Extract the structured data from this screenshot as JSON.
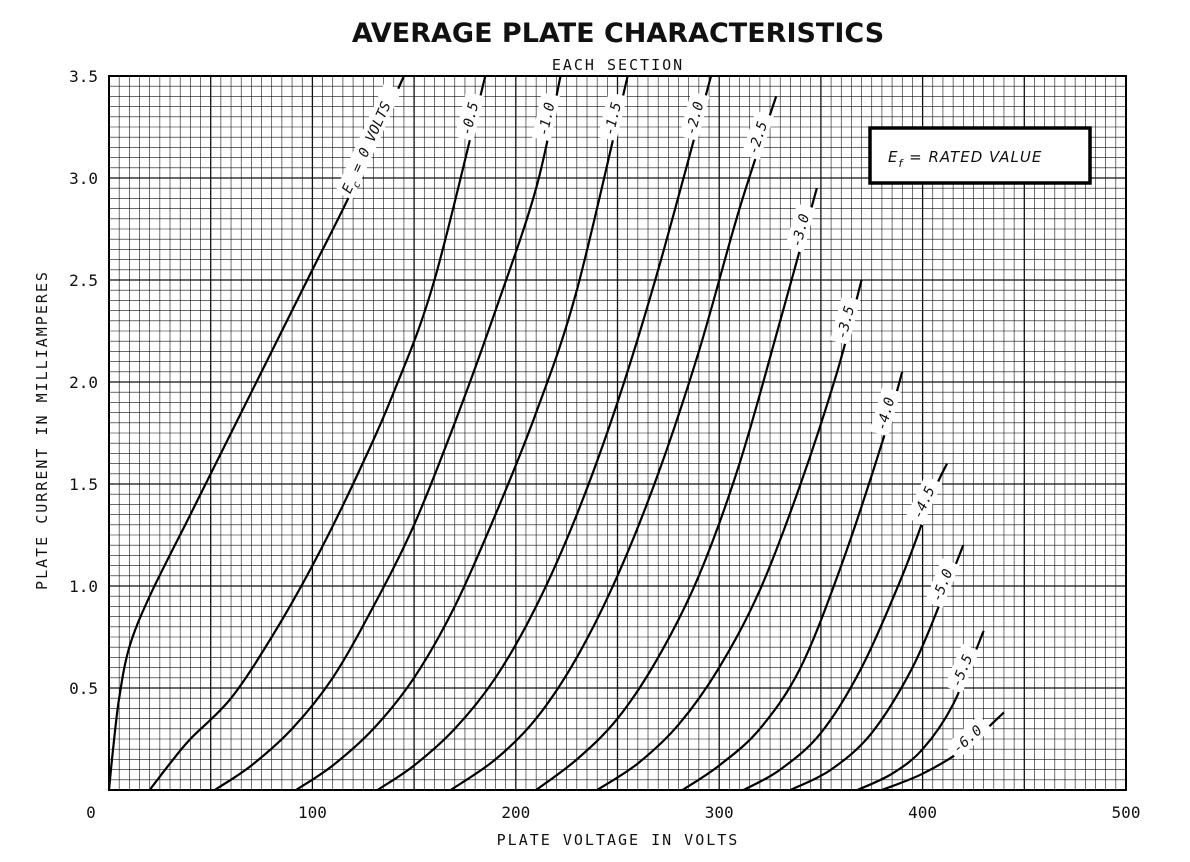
{
  "chart_data": {
    "type": "line",
    "title": "AVERAGE PLATE CHARACTERISTICS",
    "subtitle": "EACH SECTION",
    "xlabel": "PLATE VOLTAGE IN VOLTS",
    "ylabel": "PLATE CURRENT IN MILLIAMPERES",
    "xlim": [
      0,
      500
    ],
    "ylim": [
      0,
      3.5
    ],
    "grid": true,
    "x_ticks": [
      "0",
      "100",
      "200",
      "300",
      "400",
      "500"
    ],
    "y_ticks": [
      "0.5",
      "1.0",
      "1.5",
      "2.0",
      "2.5",
      "3.0",
      "3.5"
    ],
    "annotation": {
      "prefix": "E",
      "sub": "f",
      "text": " = RATED VALUE"
    },
    "series": [
      {
        "name": "E_c = 0 VOLTS",
        "label_prefix": "E",
        "label_sub": "c",
        "label_text": " = 0 VOLTS",
        "points": [
          [
            0,
            0
          ],
          [
            2,
            0.2
          ],
          [
            5,
            0.45
          ],
          [
            10,
            0.7
          ],
          [
            20,
            0.95
          ],
          [
            40,
            1.35
          ],
          [
            60,
            1.75
          ],
          [
            80,
            2.15
          ],
          [
            100,
            2.55
          ],
          [
            120,
            2.95
          ],
          [
            145,
            3.5
          ]
        ]
      },
      {
        "name": "-0.5",
        "label_text": "-0.5",
        "points": [
          [
            20,
            0
          ],
          [
            30,
            0.13
          ],
          [
            40,
            0.25
          ],
          [
            60,
            0.45
          ],
          [
            80,
            0.75
          ],
          [
            100,
            1.1
          ],
          [
            120,
            1.5
          ],
          [
            140,
            1.95
          ],
          [
            160,
            2.5
          ],
          [
            185,
            3.5
          ]
        ]
      },
      {
        "name": "-1.0",
        "label_text": "-1.0",
        "points": [
          [
            52,
            0
          ],
          [
            70,
            0.12
          ],
          [
            90,
            0.3
          ],
          [
            110,
            0.55
          ],
          [
            130,
            0.9
          ],
          [
            150,
            1.3
          ],
          [
            170,
            1.8
          ],
          [
            190,
            2.35
          ],
          [
            210,
            2.95
          ],
          [
            222,
            3.5
          ]
        ]
      },
      {
        "name": "-1.5",
        "label_text": "-1.5",
        "points": [
          [
            92,
            0
          ],
          [
            110,
            0.12
          ],
          [
            130,
            0.3
          ],
          [
            150,
            0.55
          ],
          [
            170,
            0.9
          ],
          [
            190,
            1.35
          ],
          [
            210,
            1.85
          ],
          [
            230,
            2.45
          ],
          [
            255,
            3.5
          ]
        ]
      },
      {
        "name": "-2.0",
        "label_text": "-2.0",
        "points": [
          [
            132,
            0
          ],
          [
            150,
            0.12
          ],
          [
            170,
            0.3
          ],
          [
            190,
            0.55
          ],
          [
            210,
            0.9
          ],
          [
            230,
            1.35
          ],
          [
            250,
            1.9
          ],
          [
            270,
            2.55
          ],
          [
            296,
            3.5
          ]
        ]
      },
      {
        "name": "-2.5",
        "label_text": "-2.5",
        "points": [
          [
            168,
            0
          ],
          [
            190,
            0.15
          ],
          [
            210,
            0.35
          ],
          [
            230,
            0.65
          ],
          [
            250,
            1.05
          ],
          [
            270,
            1.55
          ],
          [
            290,
            2.15
          ],
          [
            310,
            2.85
          ],
          [
            328,
            3.4
          ]
        ]
      },
      {
        "name": "-3.0",
        "label_text": "-3.0",
        "points": [
          [
            210,
            0
          ],
          [
            230,
            0.15
          ],
          [
            250,
            0.35
          ],
          [
            270,
            0.65
          ],
          [
            290,
            1.05
          ],
          [
            310,
            1.6
          ],
          [
            330,
            2.3
          ],
          [
            348,
            2.95
          ]
        ]
      },
      {
        "name": "-3.5",
        "label_text": "-3.5",
        "points": [
          [
            240,
            0
          ],
          [
            260,
            0.13
          ],
          [
            280,
            0.32
          ],
          [
            300,
            0.6
          ],
          [
            320,
            0.98
          ],
          [
            340,
            1.5
          ],
          [
            358,
            2.05
          ],
          [
            370,
            2.5
          ]
        ]
      },
      {
        "name": "-4.0",
        "label_text": "-4.0",
        "points": [
          [
            282,
            0
          ],
          [
            300,
            0.12
          ],
          [
            320,
            0.3
          ],
          [
            340,
            0.6
          ],
          [
            360,
            1.1
          ],
          [
            380,
            1.7
          ],
          [
            390,
            2.05
          ]
        ]
      },
      {
        "name": "-4.5",
        "label_text": "-4.5",
        "points": [
          [
            312,
            0
          ],
          [
            330,
            0.1
          ],
          [
            350,
            0.28
          ],
          [
            370,
            0.6
          ],
          [
            390,
            1.05
          ],
          [
            405,
            1.45
          ],
          [
            412,
            1.6
          ]
        ]
      },
      {
        "name": "-5.0",
        "label_text": "-5.0",
        "points": [
          [
            335,
            0
          ],
          [
            355,
            0.1
          ],
          [
            375,
            0.28
          ],
          [
            395,
            0.6
          ],
          [
            410,
            0.95
          ],
          [
            420,
            1.2
          ]
        ]
      },
      {
        "name": "-5.5",
        "label_text": "-5.5",
        "points": [
          [
            368,
            0
          ],
          [
            385,
            0.08
          ],
          [
            400,
            0.2
          ],
          [
            415,
            0.42
          ],
          [
            430,
            0.78
          ]
        ]
      },
      {
        "name": "-6.0",
        "label_text": "-6.0",
        "points": [
          [
            380,
            0
          ],
          [
            400,
            0.08
          ],
          [
            420,
            0.2
          ],
          [
            440,
            0.38
          ]
        ]
      }
    ]
  }
}
